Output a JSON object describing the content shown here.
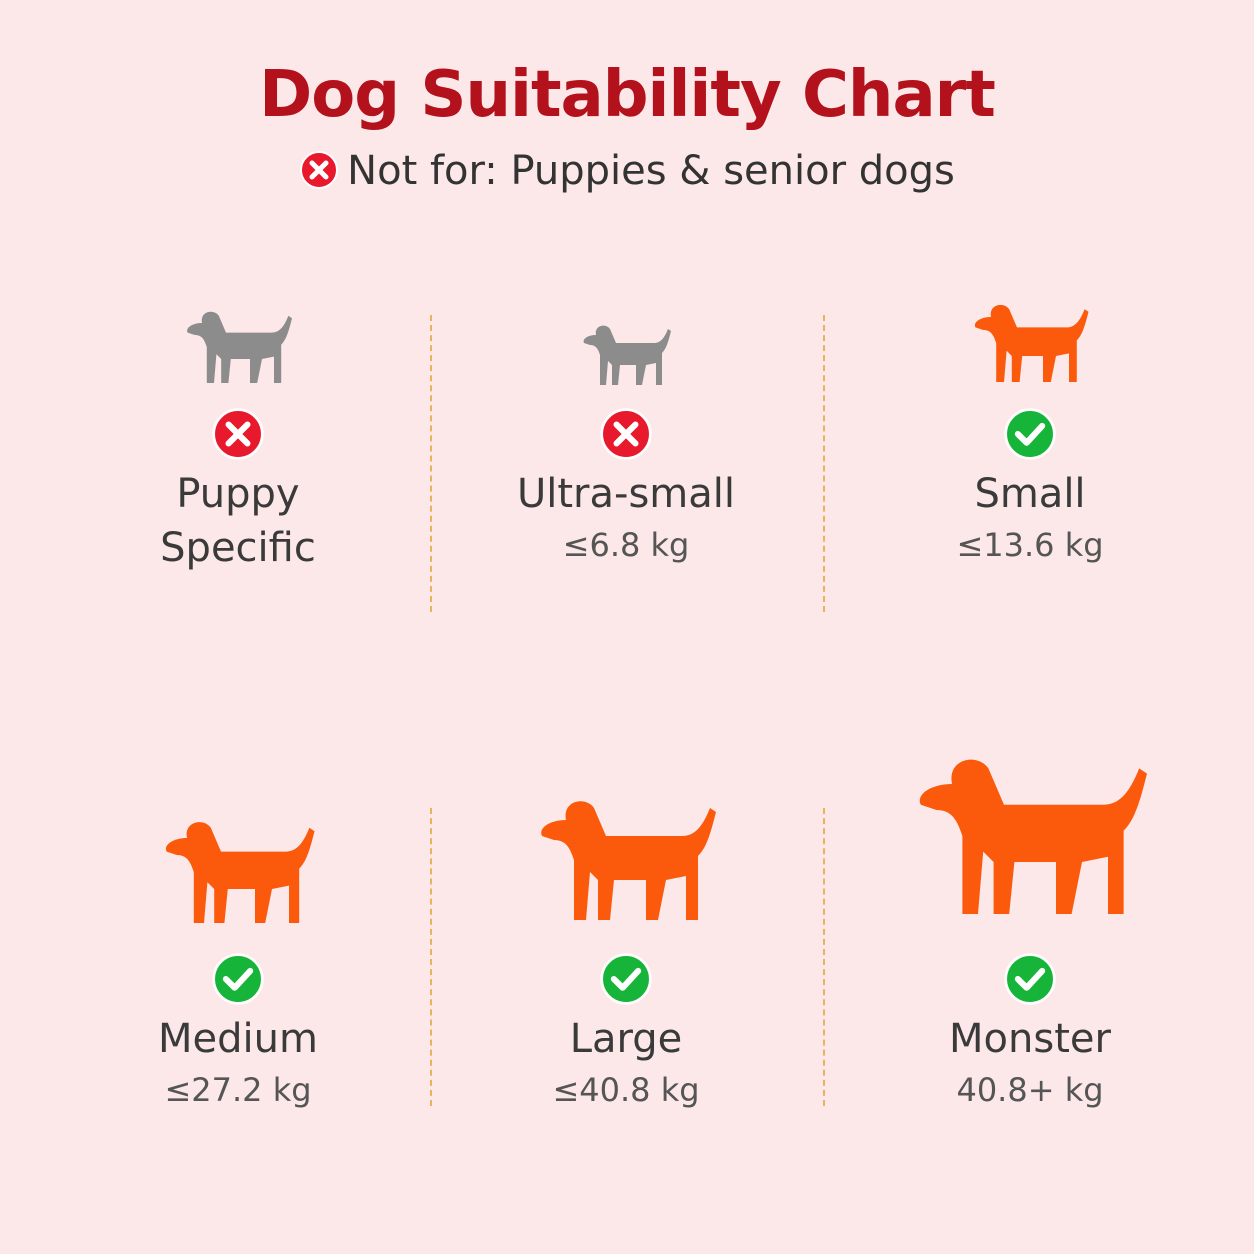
{
  "header": {
    "title": "Dog Suitability Chart",
    "subtitle": "Not for: Puppies & senior dogs"
  },
  "items": [
    {
      "label": "Puppy Specific",
      "suitable": false
    },
    {
      "label": "Ultra-small",
      "weight": "≤6.8 kg",
      "suitable": false
    },
    {
      "label": "Small",
      "weight": "≤13.6 kg",
      "suitable": true
    },
    {
      "label": "Medium",
      "weight": "≤27.2 kg",
      "suitable": true
    },
    {
      "label": "Large",
      "weight": "≤40.8 kg",
      "suitable": true
    },
    {
      "label": "Monster",
      "weight": "40.8+ kg",
      "suitable": true
    }
  ]
}
